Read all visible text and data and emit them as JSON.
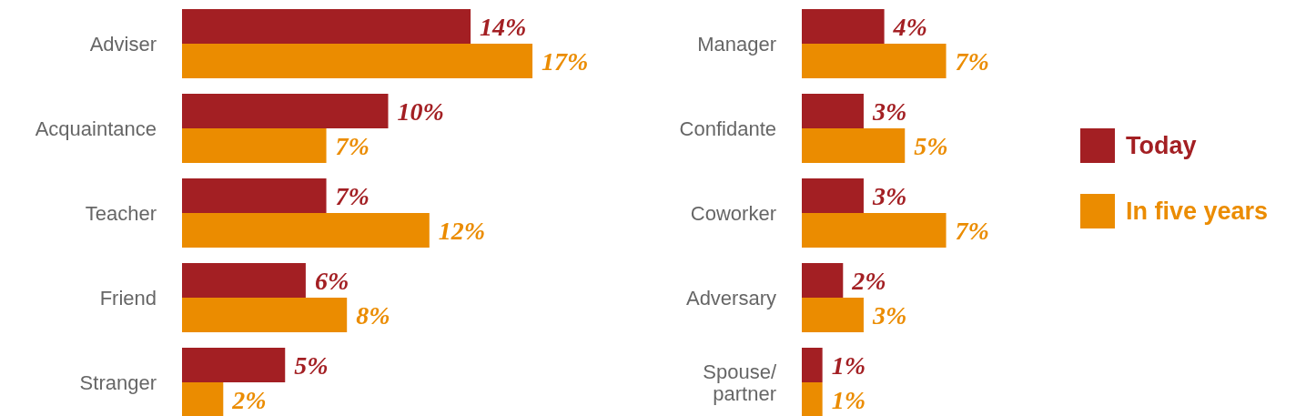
{
  "chart_data": [
    {
      "type": "bar",
      "orientation": "horizontal",
      "categories": [
        "Adviser",
        "Acquaintance",
        "Teacher",
        "Friend",
        "Stranger"
      ],
      "series": [
        {
          "color": "#a31f23",
          "values": [
            14,
            10,
            7,
            6,
            5
          ],
          "value_labels": [
            "14%",
            "10%",
            "7%",
            "6%",
            "5%"
          ]
        },
        {
          "color": "#eb8c00",
          "values": [
            17,
            7,
            12,
            8,
            2
          ],
          "value_labels": [
            "17%",
            "7%",
            "12%",
            "8%",
            "2%"
          ]
        }
      ]
    },
    {
      "type": "bar",
      "orientation": "horizontal",
      "categories": [
        "Manager",
        "Confidante",
        "Coworker",
        "Adversary",
        "Spouse/\npartner"
      ],
      "legend": "right",
      "series": [
        {
          "name": "Today",
          "color": "#a31f23",
          "values": [
            4,
            3,
            3,
            2,
            1
          ],
          "value_labels": [
            "4%",
            "3%",
            "3%",
            "2%",
            "1%"
          ]
        },
        {
          "name": "In five years",
          "color": "#eb8c00",
          "values": [
            7,
            5,
            7,
            3,
            1
          ],
          "value_labels": [
            "7%",
            "5%",
            "7%",
            "3%",
            "1%"
          ]
        }
      ]
    }
  ]
}
